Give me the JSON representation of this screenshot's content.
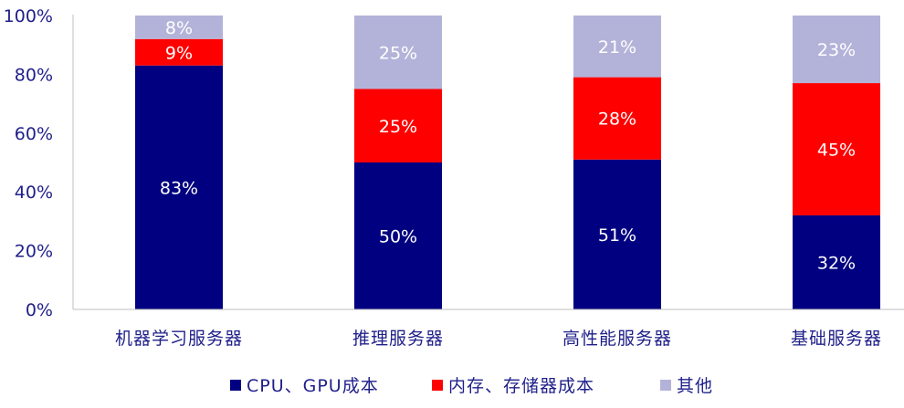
{
  "colors": {
    "axis": "#1f1f8a",
    "text": "#1f1f8a",
    "label_on_dark": "#ffffff",
    "grid": "#d9d9d9"
  },
  "chart_data": {
    "type": "bar",
    "stacked": true,
    "percent_stacked": true,
    "title": "",
    "xlabel": "",
    "ylabel": "",
    "ylim": [
      0,
      100
    ],
    "y_ticks": [
      "0%",
      "20%",
      "40%",
      "60%",
      "80%",
      "100%"
    ],
    "y_tick_values": [
      0,
      20,
      40,
      60,
      80,
      100
    ],
    "grid": false,
    "legend_position": "bottom",
    "categories": [
      "机器学习服务器",
      "推理服务器",
      "高性能服务器",
      "基础服务器"
    ],
    "series": [
      {
        "name": "CPU、GPU成本",
        "color": "#000080",
        "label_color": "#ffffff",
        "values": [
          83,
          50,
          51,
          32
        ],
        "labels": [
          "83%",
          "50%",
          "51%",
          "32%"
        ]
      },
      {
        "name": "内存、存储器成本",
        "color": "#ff0000",
        "label_color": "#ffffff",
        "values": [
          9,
          25,
          28,
          45
        ],
        "labels": [
          "9%",
          "25%",
          "28%",
          "45%"
        ]
      },
      {
        "name": "其他",
        "color": "#b3b3d9",
        "label_color": "#ffffff",
        "values": [
          8,
          25,
          21,
          23
        ],
        "labels": [
          "8%",
          "25%",
          "21%",
          "23%"
        ]
      }
    ]
  }
}
